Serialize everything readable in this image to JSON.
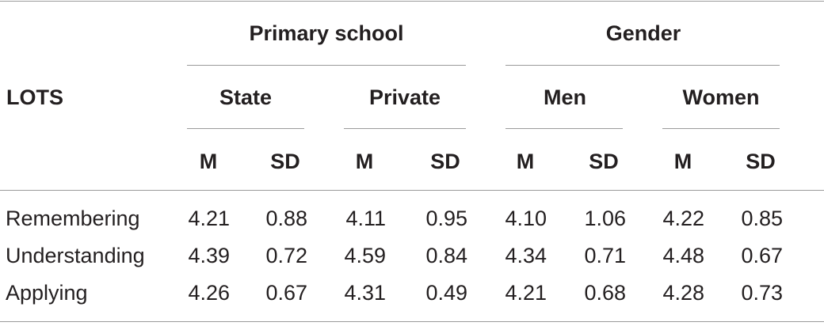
{
  "table": {
    "header": {
      "row_label": "LOTS",
      "groups": [
        "Primary school",
        "Gender"
      ],
      "subgroups": [
        "State",
        "Private",
        "Men",
        "Women"
      ],
      "stats": [
        "M",
        "SD",
        "M",
        "SD",
        "M",
        "SD",
        "M",
        "SD"
      ]
    },
    "rows": [
      {
        "label": "Remembering",
        "values": [
          "4.21",
          "0.88",
          "4.11",
          "0.95",
          "4.10",
          "1.06",
          "4.22",
          "0.85"
        ]
      },
      {
        "label": "Understanding",
        "values": [
          "4.39",
          "0.72",
          "4.59",
          "0.84",
          "4.34",
          "0.71",
          "4.48",
          "0.67"
        ]
      },
      {
        "label": "Applying",
        "values": [
          "4.26",
          "0.67",
          "4.31",
          "0.49",
          "4.21",
          "0.68",
          "4.28",
          "0.73"
        ]
      }
    ]
  }
}
